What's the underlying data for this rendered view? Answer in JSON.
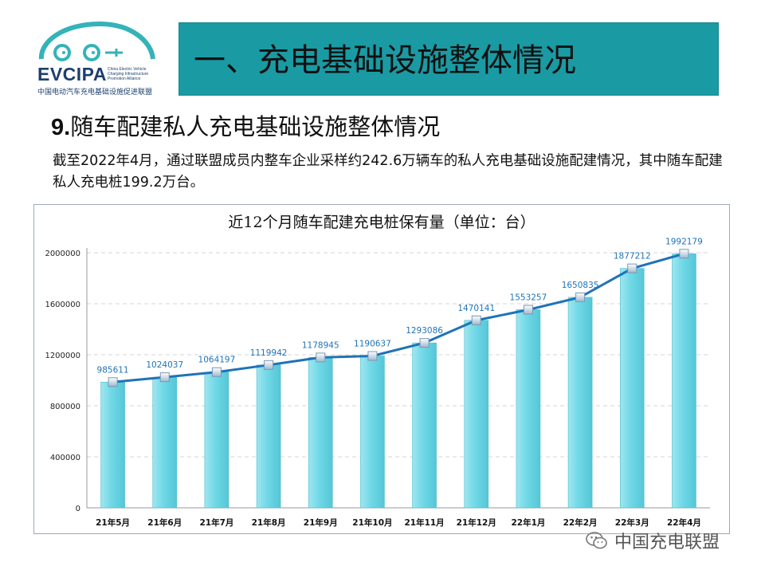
{
  "logo": {
    "abbr": "EVCIPA",
    "english": "China Electric Vehicle Charging Infrastructure Promotion Alliance",
    "chinese": "中国电动汽车充电基础设施促进联盟"
  },
  "header": {
    "title": "一、充电基础设施整体情况"
  },
  "section": {
    "number": "9.",
    "heading": "随车配建私人充电基础设施整体情况",
    "paragraph": "截至2022年4月，通过联盟成员内整车企业采样约242.6万辆车的私人充电基础设施配建情况，其中随车配建私人充电桩199.2万台。"
  },
  "watermark": {
    "text": "中国充电联盟"
  },
  "colors": {
    "banner": "#1a9aa3",
    "bar": "#6fd8e6",
    "line": "#1f73b7",
    "label": "#1f73b7"
  },
  "chart_data": {
    "type": "bar",
    "title": "近12个月随车配建充电桩保有量（单位：台）",
    "categories": [
      "21年5月",
      "21年6月",
      "21年7月",
      "21年8月",
      "21年9月",
      "21年10月",
      "21年11月",
      "21年12月",
      "22年1月",
      "22年2月",
      "22年3月",
      "22年4月"
    ],
    "values": [
      985611,
      1024037,
      1064197,
      1119942,
      1178945,
      1190637,
      1293086,
      1470141,
      1553257,
      1650835,
      1877212,
      1992179
    ],
    "overlay_line": true,
    "ylim": [
      0,
      2000000
    ],
    "yticks": [
      0,
      400000,
      800000,
      1200000,
      1600000,
      2000000
    ],
    "grid": true,
    "data_labels": [
      "985611",
      "1024037",
      "1064197",
      "1119942",
      "1178945",
      "1190637",
      "1293086",
      "1470141",
      "1553257",
      "1650835",
      "1877212",
      "1992179"
    ],
    "xlabel": "",
    "ylabel": ""
  }
}
